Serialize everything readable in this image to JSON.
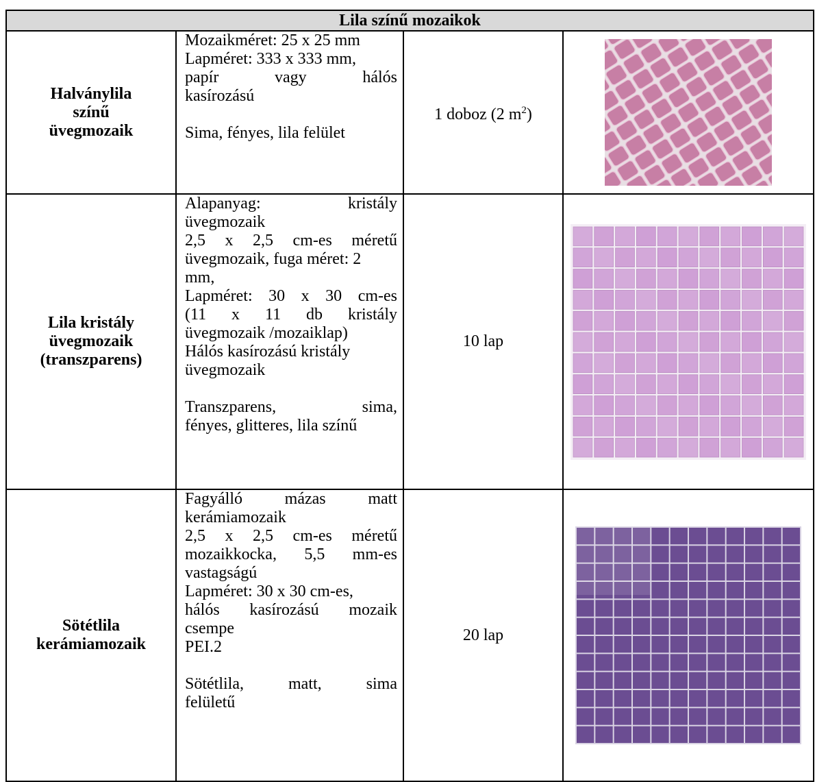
{
  "title": "Lila színű mozaikok",
  "rows": [
    {
      "name_lines": [
        "Halványlila",
        "színű",
        "üvegmozaik"
      ],
      "description_lines": [
        "Mozaikméret: 25 x 25 mm",
        "Lapméret: 333 x 333 mm,",
        "papír vagy hálós",
        "kasírozású",
        "",
        "Sima, fényes, lila felület"
      ],
      "quantity": "1 doboz (2 m",
      "quantity_sup": "2",
      "quantity_end": ")",
      "image_color": "#c77fa5"
    },
    {
      "name_lines": [
        "Lila kristály",
        "üvegmozaik",
        "(transzparens)"
      ],
      "description_lines": [
        "Alapanyag: kristály",
        "üvegmozaik",
        "2,5 x 2,5 cm-es méretű",
        "üvegmozaik, fuga méret: 2",
        "mm,",
        "Lapméret: 30 x 30 cm-es",
        "(11 x 11 db kristály",
        "üvegmozaik /mozaiklap)",
        "Hálós kasírozású kristály",
        "üvegmozaik",
        "",
        "Transzparens, sima,",
        "fényes, glitteres, lila színű"
      ],
      "quantity": "10 lap",
      "image_color": "#cfa0d6"
    },
    {
      "name_lines": [
        "Sötétlila",
        "kerámiamozaik"
      ],
      "description_lines": [
        "Fagyálló mázas matt",
        "kerámiamozaik",
        "2,5 x 2,5 cm-es méretű",
        "mozaikkocka, 5,5 mm-es",
        "vastagságú",
        "Lapméret: 30 x 30 cm-es,",
        "hálós kasírozású mozaik",
        "csempe",
        "PEI.2",
        "",
        "Sötétlila, matt, sima",
        "felületű"
      ],
      "quantity": "20 lap",
      "image_color": "#6b4d92"
    }
  ]
}
